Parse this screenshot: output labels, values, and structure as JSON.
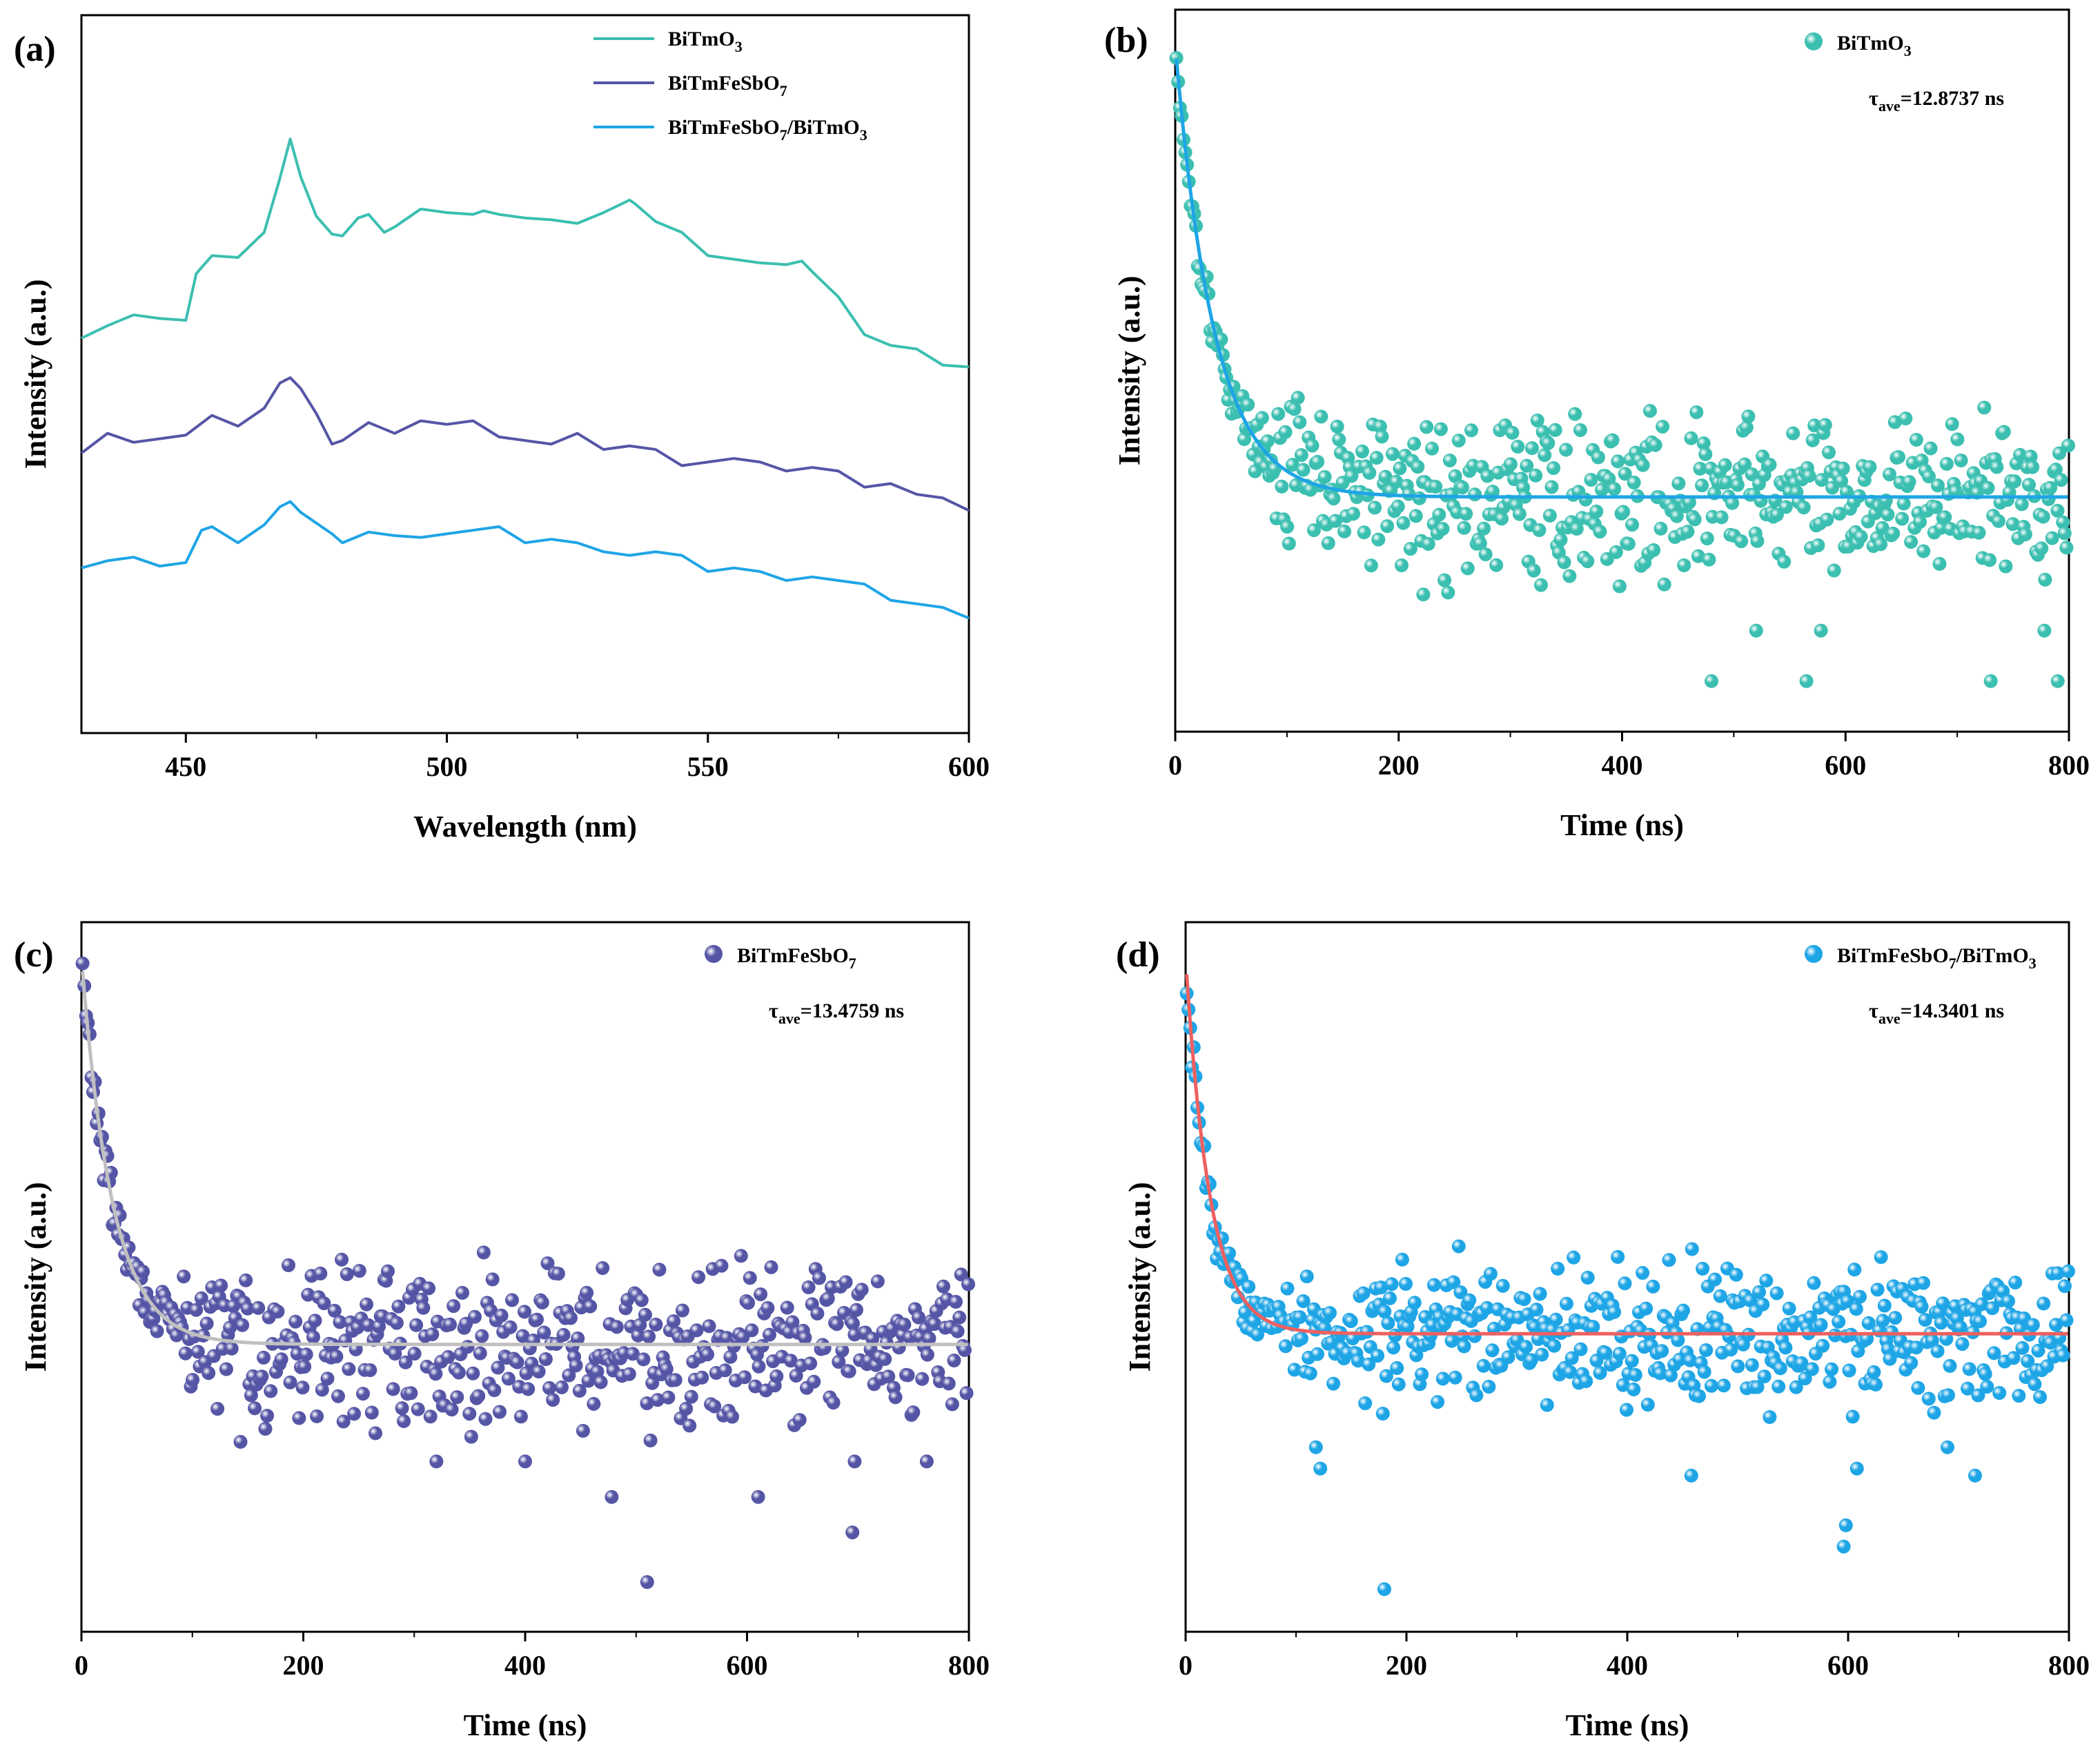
{
  "chart_data": [
    {
      "panel": "(a)",
      "type": "line",
      "xlabel": "Wavelength (nm)",
      "ylabel": "Intensity (a.u.)",
      "xlim": [
        430,
        600
      ],
      "ylim": [
        0,
        100
      ],
      "xticks": [
        450,
        500,
        550,
        600
      ],
      "yticks_shown": false,
      "legend_position": "top-right",
      "series": [
        {
          "name": "BiTmO3",
          "label_main": "BiTmO",
          "label_sub": "3",
          "label_tail": "",
          "color": "#3bbfb0",
          "x": [
            430,
            435,
            440,
            445,
            450,
            452,
            455,
            460,
            465,
            468,
            470,
            472,
            475,
            478,
            480,
            483,
            485,
            488,
            490,
            495,
            500,
            505,
            507,
            510,
            515,
            520,
            525,
            530,
            535,
            536,
            540,
            545,
            550,
            555,
            560,
            565,
            568,
            570,
            575,
            580,
            585,
            590,
            595,
            600
          ],
          "y": [
            55,
            57,
            58,
            57,
            58,
            64,
            66,
            67,
            70,
            77,
            82,
            78,
            72,
            69,
            70,
            72,
            72,
            69,
            71,
            73,
            72,
            73,
            73,
            72,
            71,
            72,
            71,
            72,
            75,
            74,
            71,
            69,
            67,
            66,
            65,
            66,
            66,
            64,
            60,
            56,
            54,
            53,
            52,
            51
          ]
        },
        {
          "name": "BiTmFeSbO7",
          "label_main": "BiTmFeSbO",
          "label_sub": "7",
          "label_tail": "",
          "color": "#5555a6",
          "x": [
            430,
            435,
            440,
            445,
            450,
            455,
            460,
            465,
            468,
            470,
            472,
            475,
            478,
            480,
            485,
            490,
            495,
            500,
            505,
            510,
            515,
            520,
            525,
            530,
            535,
            540,
            545,
            550,
            555,
            560,
            565,
            570,
            575,
            580,
            585,
            590,
            595,
            600
          ],
          "y": [
            39,
            41,
            41,
            41,
            41,
            45,
            43,
            45,
            48,
            50,
            48,
            44,
            41,
            41,
            43,
            41,
            44,
            43,
            43,
            42,
            41,
            40,
            41,
            40,
            40,
            39,
            38,
            38,
            38,
            37,
            37,
            37,
            36,
            35,
            35,
            33,
            32,
            31
          ]
        },
        {
          "name": "BiTmFeSbO7/BiTmO3",
          "label_main": "BiTmFeSbO",
          "label_sub": "7",
          "label_tail": "/BiTmO",
          "label_sub2": "3",
          "color": "#1ea5e6",
          "x": [
            430,
            435,
            440,
            445,
            450,
            453,
            455,
            460,
            465,
            468,
            470,
            472,
            475,
            478,
            480,
            485,
            490,
            495,
            500,
            505,
            510,
            515,
            520,
            525,
            530,
            535,
            540,
            545,
            550,
            555,
            560,
            565,
            570,
            575,
            580,
            585,
            590,
            595,
            600
          ],
          "y": [
            23,
            24,
            24,
            24,
            24,
            28,
            28,
            27,
            29,
            31,
            33,
            31,
            29,
            27,
            27,
            28,
            27,
            28,
            28,
            28,
            28,
            27,
            27,
            26,
            26,
            25,
            25,
            24,
            23,
            23,
            22,
            22,
            22,
            21,
            20,
            19,
            18,
            17,
            16
          ]
        }
      ]
    },
    {
      "panel": "(b)",
      "type": "scatter",
      "xlabel": "Time (ns)",
      "ylabel": "Intensity (a.u.)",
      "xlim": [
        0,
        800
      ],
      "ylim": [
        0,
        100
      ],
      "xticks": [
        0,
        200,
        400,
        600,
        800
      ],
      "legend": "BiTmO3",
      "legend_main": "BiTmO",
      "legend_sub": "3",
      "legend_tail": "",
      "legend_sub2": "",
      "tau_main": "τ",
      "tau_sub": "ave",
      "tau_value": "=12.8737 ns",
      "point_color": "#3bbfb0",
      "fit_color": "#1ea5e6",
      "fit": {
        "amplitude": 95,
        "tau": 35,
        "baseline": 32.5
      },
      "noise": {
        "spread": 8,
        "seed": 17
      },
      "outliers": [
        [
          222,
          19
        ],
        [
          480,
          7
        ],
        [
          520,
          14
        ],
        [
          565,
          7
        ],
        [
          578,
          14
        ],
        [
          730,
          7
        ],
        [
          778,
          14
        ],
        [
          790,
          7
        ]
      ]
    },
    {
      "panel": "(c)",
      "type": "scatter",
      "xlabel": "Time (ns)",
      "ylabel": "Intensity (a.u.)",
      "xlim": [
        0,
        800
      ],
      "ylim": [
        0,
        100
      ],
      "xticks": [
        0,
        200,
        400,
        600,
        800
      ],
      "legend": "BiTmFeSbO7",
      "legend_main": "BiTmFeSbO",
      "legend_sub": "7",
      "legend_tail": "",
      "legend_sub2": "",
      "tau_main": "τ",
      "tau_sub": "ave",
      "tau_value": "=13.4759 ns",
      "point_color": "#5555a6",
      "fit_color": "#c0c0c0",
      "fit": {
        "amplitude": 95,
        "tau": 28,
        "baseline": 40.5
      },
      "noise": {
        "spread": 8,
        "seed": 29
      },
      "outliers": [
        [
          320,
          24
        ],
        [
          400,
          24
        ],
        [
          478,
          19
        ],
        [
          510,
          7
        ],
        [
          610,
          19
        ],
        [
          695,
          14
        ],
        [
          697,
          24
        ],
        [
          762,
          24
        ]
      ]
    },
    {
      "panel": "(d)",
      "type": "scatter",
      "xlabel": "Time (ns)",
      "ylabel": "Intensity (a.u.)",
      "xlim": [
        0,
        800
      ],
      "ylim": [
        0,
        100
      ],
      "xticks": [
        0,
        200,
        400,
        600,
        800
      ],
      "legend": "BiTmFeSbO7/BiTmO3",
      "legend_main": "BiTmFeSbO",
      "legend_sub": "7",
      "legend_tail": "/BiTmO",
      "legend_sub2": "3",
      "tau_main": "τ",
      "tau_sub": "ave",
      "tau_value": "=14.3401 ns",
      "point_color": "#1ea5e6",
      "fit_color": "#ee6060",
      "fit": {
        "amplitude": 95,
        "tau": 22,
        "baseline": 42
      },
      "noise": {
        "spread": 7,
        "seed": 43
      },
      "outliers": [
        [
          118,
          26
        ],
        [
          122,
          23
        ],
        [
          180,
          6
        ],
        [
          458,
          22
        ],
        [
          596,
          12
        ],
        [
          598,
          15
        ],
        [
          608,
          23
        ],
        [
          690,
          26
        ],
        [
          715,
          22
        ]
      ]
    }
  ]
}
